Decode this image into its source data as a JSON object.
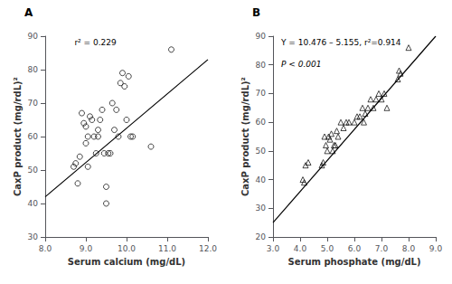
{
  "chart_data": [
    {
      "type": "scatter",
      "title": "A",
      "annotations": [
        "r² = 0.229"
      ],
      "xlabel": "Serum calcium (mg/dL)",
      "ylabel": "CaxP product (mg/rdL)²",
      "xlim": [
        8.0,
        12.0
      ],
      "ylim": [
        30,
        90
      ],
      "xticks": [
        {
          "value": 8.0,
          "label": "8.0"
        },
        {
          "value": 9.0,
          "label": "9.0"
        },
        {
          "value": 10.0,
          "label": "10.0"
        },
        {
          "value": 11.0,
          "label": "11.0"
        },
        {
          "value": 12.0,
          "label": "12.0"
        }
      ],
      "yticks": [
        30,
        40,
        50,
        60,
        70,
        80,
        90
      ],
      "grid": false,
      "series": [
        {
          "type": "scatter",
          "marker": "circle",
          "color": "#000000",
          "x": [
            8.7,
            8.75,
            8.8,
            8.85,
            8.9,
            8.95,
            9.0,
            9.0,
            9.05,
            9.05,
            9.1,
            9.15,
            9.2,
            9.25,
            9.3,
            9.3,
            9.35,
            9.4,
            9.45,
            9.5,
            9.5,
            9.55,
            9.6,
            9.65,
            9.7,
            9.75,
            9.8,
            9.85,
            9.9,
            9.95,
            10.0,
            10.05,
            10.1,
            10.15,
            10.6,
            11.1
          ],
          "values": [
            51,
            52,
            46,
            54,
            67,
            64,
            63,
            58,
            60,
            51,
            66,
            65,
            60,
            55,
            62,
            60,
            65,
            68,
            55,
            45,
            40,
            55,
            55,
            70,
            62,
            68,
            60,
            76,
            79,
            75,
            65,
            78,
            60,
            60,
            57,
            86
          ]
        },
        {
          "type": "line",
          "color": "#000000",
          "x": [
            8.0,
            12.0
          ],
          "values": [
            42.0,
            83.0
          ]
        }
      ]
    },
    {
      "type": "scatter",
      "title": "B",
      "annotations": [
        "Y = 10.476 – 5.155, r²=0.914",
        "P < 0.001"
      ],
      "xlabel": "Serum phosphate (mg/dL)",
      "ylabel": "CaxP product (mg/rdL)²",
      "xlim": [
        3.0,
        9.0
      ],
      "ylim": [
        20,
        90
      ],
      "xticks": [
        {
          "value": 3.0,
          "label": "3.0"
        },
        {
          "value": 4.0,
          "label": "4.0"
        },
        {
          "value": 5.0,
          "label": "5.0"
        },
        {
          "value": 6.0,
          "label": "6.0"
        },
        {
          "value": 7.0,
          "label": "7.0"
        },
        {
          "value": 8.0,
          "label": "8.0"
        },
        {
          "value": 9.0,
          "label": "9.0"
        }
      ],
      "yticks": [
        20,
        30,
        40,
        50,
        60,
        70,
        80,
        90
      ],
      "grid": false,
      "series": [
        {
          "type": "scatter",
          "marker": "triangle",
          "color": "#000000",
          "x": [
            4.1,
            4.15,
            4.2,
            4.3,
            4.8,
            4.85,
            4.9,
            4.95,
            5.0,
            5.05,
            5.1,
            5.15,
            5.2,
            5.25,
            5.3,
            5.35,
            5.4,
            5.5,
            5.6,
            5.7,
            5.8,
            6.0,
            6.1,
            6.2,
            6.3,
            6.35,
            6.4,
            6.5,
            6.6,
            6.7,
            6.8,
            6.9,
            7.0,
            7.1,
            7.2,
            7.6,
            7.65,
            7.7,
            8.0
          ],
          "values": [
            40,
            39,
            45,
            46,
            45,
            46,
            55,
            52,
            50,
            55,
            54,
            56,
            50,
            52,
            52,
            57,
            55,
            60,
            58,
            60,
            60,
            60,
            62,
            62,
            65,
            60,
            63,
            65,
            68,
            65,
            68,
            70,
            68,
            70,
            65,
            75,
            78,
            77,
            86
          ]
        },
        {
          "type": "line",
          "color": "#000000",
          "x": [
            3.0,
            9.0
          ],
          "values": [
            25.0,
            90.0
          ]
        }
      ]
    }
  ]
}
